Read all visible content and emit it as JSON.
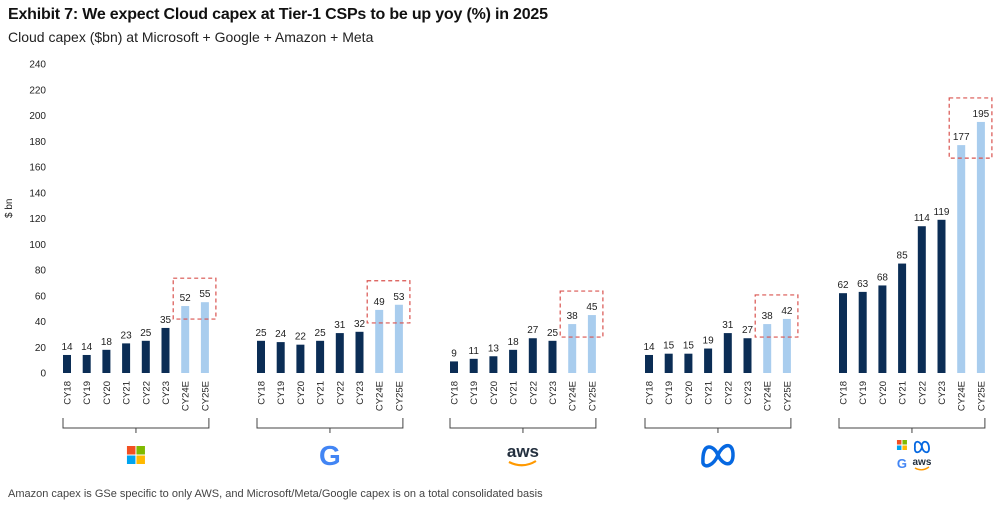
{
  "title": "Exhibit 7: We expect Cloud capex at Tier-1 CSPs to be up yoy (%) in 2025",
  "subtitle": "Cloud capex ($bn) at Microsoft + Google + Amazon + Meta",
  "footnote": "Amazon capex is GSe specific to only AWS, and Microsoft/Meta/Google capex is on a total consolidated basis",
  "colors": {
    "actual": "#0b2d55",
    "estimate": "#a9cdee",
    "highlight_box": "#d9534f",
    "axis_text": "#222222"
  },
  "chart_data": {
    "type": "bar",
    "title": "Exhibit 7: We expect Cloud capex at Tier-1 CSPs to be up yoy (%) in 2025",
    "ylabel": "$ bn",
    "ylim": [
      0,
      240
    ],
    "yticks": [
      0,
      20,
      40,
      60,
      80,
      100,
      120,
      140,
      160,
      180,
      200,
      220,
      240
    ],
    "grid": false,
    "categories": [
      "CY18",
      "CY19",
      "CY20",
      "CY21",
      "CY22",
      "CY23",
      "CY24E",
      "CY25E"
    ],
    "estimate_categories": [
      "CY24E",
      "CY25E"
    ],
    "groups": [
      {
        "name": "Microsoft",
        "logo": "microsoft-logo",
        "values": [
          14,
          14,
          18,
          23,
          25,
          35,
          52,
          55
        ]
      },
      {
        "name": "Google",
        "logo": "google-logo",
        "logo_text": "G",
        "values": [
          25,
          24,
          22,
          25,
          31,
          32,
          49,
          53
        ]
      },
      {
        "name": "Amazon (AWS)",
        "logo": "aws-logo",
        "logo_text": "aws",
        "values": [
          9,
          11,
          13,
          18,
          27,
          25,
          38,
          45
        ]
      },
      {
        "name": "Meta",
        "logo": "meta-logo",
        "values": [
          14,
          15,
          15,
          19,
          31,
          27,
          38,
          42
        ]
      },
      {
        "name": "Total",
        "logo": "combined-logos",
        "logo_text": "G aws",
        "values": [
          62,
          63,
          68,
          85,
          114,
          119,
          177,
          195
        ]
      }
    ]
  }
}
